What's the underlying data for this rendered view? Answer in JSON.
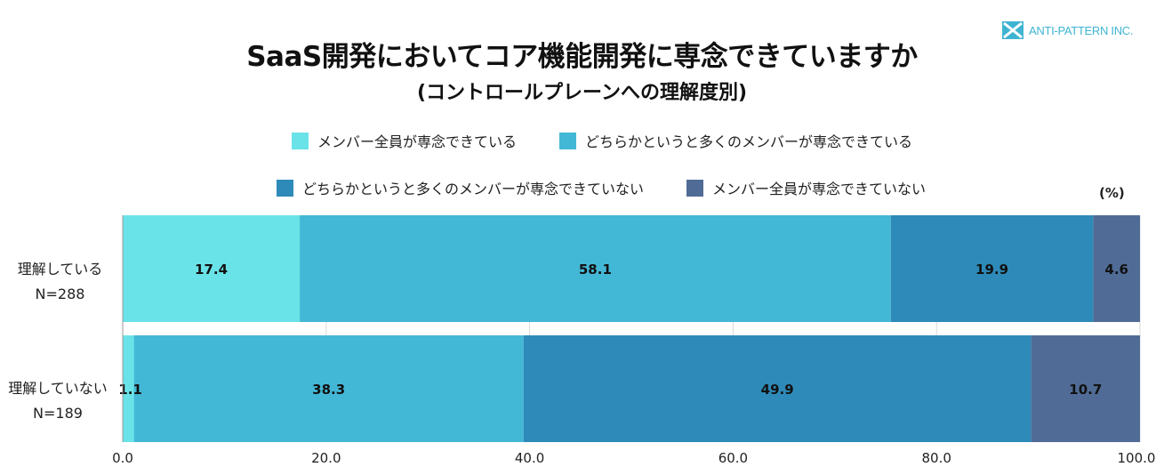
{
  "logo": {
    "text": "ANTI-PATTERN INC."
  },
  "chart_data": {
    "type": "bar",
    "orientation": "horizontal",
    "stacked": true,
    "title": "SaaS開発においてコア機能開発に専念できていますか",
    "subtitle": "(コントロールプレーンへの理解度別)",
    "unit": "(%)",
    "categories": [
      {
        "label": "理解している",
        "n": "N=288"
      },
      {
        "label": "理解していない",
        "n": "N=189"
      }
    ],
    "series": [
      {
        "name": "メンバー全員が専念できている",
        "color": "#6ae3e8",
        "values": [
          17.4,
          1.1
        ]
      },
      {
        "name": "どちらかというと多くのメンバーが専念できている",
        "color": "#43b8d6",
        "values": [
          58.1,
          38.3
        ]
      },
      {
        "name": "どちらかというと多くのメンバーが専念できていない",
        "color": "#2e8ab8",
        "values": [
          19.9,
          49.9
        ]
      },
      {
        "name": "メンバー全員が専念できていない",
        "color": "#506c96",
        "values": [
          4.6,
          10.7
        ]
      }
    ],
    "xlim": [
      0,
      100
    ],
    "xticks": [
      "0.0",
      "20.0",
      "40.0",
      "60.0",
      "80.0",
      "100.0"
    ],
    "grid": true,
    "legend_position": "top"
  }
}
